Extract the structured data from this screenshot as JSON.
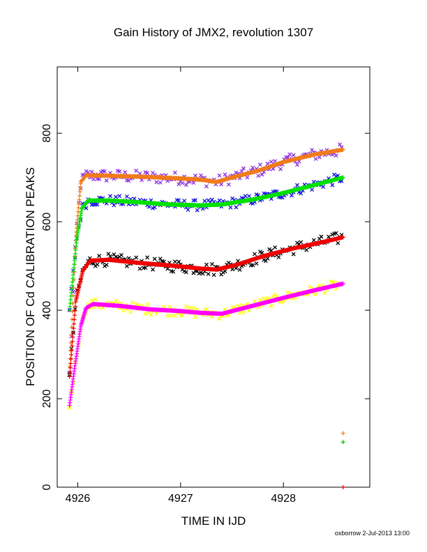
{
  "chart_data": {
    "type": "scatter",
    "title": "Gain History of JMX2, revolution 1307",
    "xlabel": "TIME IN IJD",
    "ylabel": "POSITION OF Cd CALIBRATION PEAKS",
    "xlim": [
      4925.8,
      4928.84
    ],
    "ylim": [
      0,
      950
    ],
    "x_ticks": [
      4926,
      4927,
      4928
    ],
    "y_ticks": [
      0,
      200,
      400,
      600,
      800
    ],
    "grid": false,
    "legend": "none",
    "footer": "oxborrow  2-Jul-2013 13:00",
    "series": [
      {
        "color": "#f07c1e",
        "marker": "+",
        "fit": [
          [
            4925.92,
            255
          ],
          [
            4925.98,
            560
          ],
          [
            4926.03,
            690
          ],
          [
            4926.08,
            705
          ],
          [
            4926.3,
            704
          ],
          [
            4926.6,
            702
          ],
          [
            4927.0,
            698
          ],
          [
            4927.2,
            695
          ],
          [
            4927.35,
            690
          ],
          [
            4927.5,
            700
          ],
          [
            4927.75,
            715
          ],
          [
            4928.0,
            735
          ],
          [
            4928.3,
            752
          ],
          [
            4928.58,
            763
          ]
        ]
      },
      {
        "color": "#8a2be2",
        "marker": "x",
        "scatter_of": 0,
        "jitter": 14
      },
      {
        "color": "#00e000",
        "marker": "+",
        "fit": [
          [
            4925.92,
            400
          ],
          [
            4925.99,
            560
          ],
          [
            4926.04,
            630
          ],
          [
            4926.1,
            648
          ],
          [
            4926.3,
            648
          ],
          [
            4926.6,
            644
          ],
          [
            4926.9,
            639
          ],
          [
            4927.2,
            637
          ],
          [
            4927.4,
            639
          ],
          [
            4927.7,
            650
          ],
          [
            4928.0,
            665
          ],
          [
            4928.3,
            683
          ],
          [
            4928.58,
            700
          ]
        ]
      },
      {
        "color": "#1010dd",
        "marker": "x",
        "scatter_of": 2,
        "jitter": 12
      },
      {
        "color": "#ee0000",
        "marker": "+",
        "fit": [
          [
            4925.92,
            250
          ],
          [
            4925.98,
            420
          ],
          [
            4926.05,
            490
          ],
          [
            4926.12,
            512
          ],
          [
            4926.3,
            514
          ],
          [
            4926.6,
            507
          ],
          [
            4927.0,
            499
          ],
          [
            4927.2,
            494
          ],
          [
            4927.35,
            492
          ],
          [
            4927.55,
            503
          ],
          [
            4927.8,
            522
          ],
          [
            4928.1,
            540
          ],
          [
            4928.4,
            555
          ],
          [
            4928.58,
            565
          ]
        ]
      },
      {
        "color": "#000000",
        "marker": "x",
        "scatter_of": 4,
        "jitter": 14
      },
      {
        "color": "#ff00ff",
        "marker": "+",
        "fit": [
          [
            4925.92,
            185
          ],
          [
            4925.97,
            270
          ],
          [
            4926.03,
            365
          ],
          [
            4926.08,
            405
          ],
          [
            4926.15,
            414
          ],
          [
            4926.4,
            410
          ],
          [
            4926.7,
            402
          ],
          [
            4927.0,
            398
          ],
          [
            4927.2,
            394
          ],
          [
            4927.4,
            392
          ],
          [
            4927.7,
            410
          ],
          [
            4928.0,
            428
          ],
          [
            4928.3,
            445
          ],
          [
            4928.58,
            460
          ]
        ]
      },
      {
        "color": "#ffff00",
        "marker": "x",
        "scatter_of": 6,
        "jitter": 12
      },
      {
        "color": "#f07c1e",
        "marker": "+",
        "points": [
          [
            4928.58,
            122
          ]
        ]
      },
      {
        "color": "#00c000",
        "marker": "+",
        "points": [
          [
            4928.58,
            102
          ]
        ]
      },
      {
        "color": "#ee0000",
        "marker": "+",
        "points": [
          [
            4928.58,
            0
          ]
        ]
      }
    ]
  }
}
